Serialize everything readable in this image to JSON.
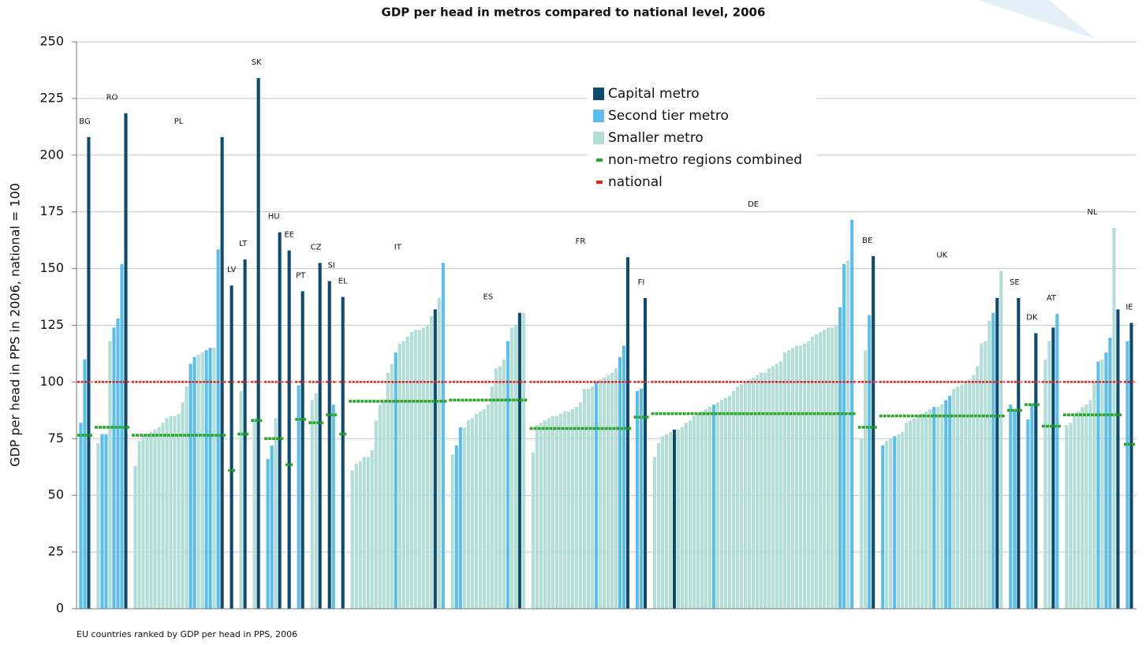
{
  "chart_data": {
    "type": "bar",
    "title": "GDP per head in metros compared to national level, 2006",
    "y_label": "GDP per head in PPS in 2006, national = 100",
    "x_label": "EU countries ranked by GDP per head in PPS, 2006",
    "ylim": [
      0,
      250
    ],
    "yticks": [
      0,
      25,
      50,
      75,
      100,
      125,
      150,
      175,
      200,
      225,
      250
    ],
    "grid": true,
    "series": [
      {
        "name": "Capital metro",
        "color": "#0e4a6e"
      },
      {
        "name": "Second tier metro",
        "color": "#5bbde8"
      },
      {
        "name": "Smaller metro",
        "color": "#b3ddd7"
      },
      {
        "name": "non-metro regions combined",
        "color": "#2aa52a"
      },
      {
        "name": "national",
        "color": "#d8231e"
      }
    ],
    "countries": [
      {
        "label": "BG",
        "values": [
          82,
          110,
          208
        ],
        "series": [
          1,
          1,
          0
        ],
        "non_metro": 76.5,
        "national": 100
      },
      {
        "label": "RO",
        "values": [
          73,
          77,
          77,
          118,
          124,
          128,
          152,
          218.5
        ],
        "series": [
          2,
          1,
          1,
          2,
          1,
          1,
          1,
          0
        ],
        "non_metro": 80,
        "national": 100
      },
      {
        "label": "PL",
        "values": [
          63,
          74,
          76,
          77,
          78,
          79,
          80,
          82,
          84,
          85,
          85,
          86,
          91,
          98,
          108,
          111,
          112,
          113,
          114,
          115,
          115,
          158.5,
          208
        ],
        "series": [
          2,
          2,
          2,
          2,
          2,
          2,
          2,
          2,
          2,
          2,
          2,
          2,
          2,
          2,
          1,
          1,
          2,
          2,
          1,
          1,
          2,
          1,
          0
        ],
        "non_metro": 76.5,
        "national": 100
      },
      {
        "label": "LV",
        "values": [
          142.5
        ],
        "series": [
          0
        ],
        "non_metro": 61,
        "national": 100
      },
      {
        "label": "LT",
        "values": [
          96,
          154
        ],
        "series": [
          2,
          0
        ],
        "non_metro": 77,
        "national": 100
      },
      {
        "label": "SK",
        "values": [
          84,
          234
        ],
        "series": [
          2,
          0
        ],
        "non_metro": 83,
        "national": 100
      },
      {
        "label": "HU",
        "values": [
          66,
          72,
          84,
          166
        ],
        "series": [
          1,
          1,
          2,
          0
        ],
        "non_metro": 75,
        "national": 100
      },
      {
        "label": "EE",
        "values": [
          158
        ],
        "series": [
          0
        ],
        "non_metro": 63.5,
        "national": 100
      },
      {
        "label": "PT",
        "values": [
          98.5,
          140
        ],
        "series": [
          1,
          0
        ],
        "non_metro": 83.5,
        "national": 100
      },
      {
        "label": "CZ",
        "values": [
          92,
          95,
          152.5
        ],
        "series": [
          2,
          2,
          0
        ],
        "non_metro": 82,
        "national": 100
      },
      {
        "label": "SI",
        "values": [
          144.5,
          90
        ],
        "series": [
          0,
          1
        ],
        "non_metro": 85.5,
        "national": 100
      },
      {
        "label": "EL",
        "values": [
          137.5
        ],
        "series": [
          0
        ],
        "non_metro": 77,
        "national": 100
      },
      {
        "label": "IT",
        "values": [
          61,
          64,
          65,
          67,
          67,
          70,
          83,
          90,
          91,
          104,
          108,
          113,
          117,
          118,
          120,
          122,
          123,
          123,
          124,
          125,
          129,
          132,
          137,
          152.5
        ],
        "series": [
          2,
          2,
          2,
          2,
          2,
          2,
          2,
          2,
          2,
          2,
          2,
          1,
          2,
          2,
          2,
          2,
          2,
          2,
          2,
          2,
          2,
          0,
          2,
          1
        ],
        "non_metro": 91.5,
        "national": 100
      },
      {
        "label": "ES",
        "values": [
          68,
          72,
          80,
          80,
          83,
          84,
          86,
          87,
          88,
          90,
          98,
          106,
          107,
          110,
          118,
          124,
          125,
          130.5,
          130.5
        ],
        "series": [
          2,
          1,
          1,
          2,
          2,
          2,
          2,
          2,
          2,
          2,
          2,
          2,
          2,
          2,
          1,
          2,
          2,
          0,
          2
        ],
        "non_metro": 92,
        "national": 100
      },
      {
        "label": "FR",
        "values": [
          69,
          81,
          82,
          83,
          84,
          85,
          85,
          86,
          87,
          87,
          88,
          89,
          91,
          97,
          97,
          98,
          100,
          101,
          102,
          103,
          104,
          106,
          111,
          116,
          155
        ],
        "series": [
          2,
          2,
          2,
          2,
          2,
          2,
          2,
          2,
          2,
          2,
          2,
          2,
          2,
          2,
          2,
          2,
          1,
          2,
          2,
          2,
          2,
          2,
          1,
          1,
          0
        ],
        "non_metro": 79.5,
        "national": 100
      },
      {
        "label": "FI",
        "values": [
          96,
          97,
          137
        ],
        "series": [
          1,
          1,
          0
        ],
        "non_metro": 84.5,
        "national": 100
      },
      {
        "label": "DE",
        "values": [
          67,
          73,
          76,
          77,
          78,
          79,
          79,
          80,
          82,
          83,
          85,
          86,
          87,
          88,
          89,
          90,
          91,
          92,
          93,
          94,
          96,
          98,
          99,
          100,
          101,
          102,
          103,
          104,
          104,
          106,
          107,
          108,
          109,
          113,
          114,
          115,
          116,
          116,
          117,
          118,
          120,
          121,
          122,
          123,
          124,
          124,
          125,
          133,
          152,
          153.5,
          171.5
        ],
        "series": [
          2,
          2,
          2,
          2,
          2,
          0,
          2,
          2,
          2,
          2,
          2,
          2,
          2,
          2,
          2,
          1,
          2,
          2,
          2,
          2,
          2,
          2,
          2,
          2,
          2,
          2,
          2,
          2,
          2,
          2,
          2,
          2,
          2,
          2,
          2,
          2,
          2,
          2,
          2,
          2,
          2,
          2,
          2,
          2,
          2,
          2,
          2,
          1,
          1,
          2,
          1
        ],
        "non_metro": 86,
        "national": 100
      },
      {
        "label": "BE",
        "values": [
          75,
          114,
          129.5,
          155.5
        ],
        "series": [
          2,
          2,
          1,
          0
        ],
        "non_metro": 80,
        "national": 100
      },
      {
        "label": "UK",
        "values": [
          72,
          74,
          75,
          76,
          77,
          78,
          82,
          83,
          84,
          85,
          86,
          87,
          88,
          89,
          89,
          90,
          92,
          94,
          97,
          98,
          99,
          100,
          101,
          103,
          107,
          117,
          118,
          127,
          130.5,
          137,
          149
        ],
        "series": [
          1,
          2,
          2,
          1,
          2,
          2,
          2,
          2,
          2,
          2,
          2,
          2,
          2,
          1,
          2,
          2,
          1,
          1,
          2,
          2,
          2,
          2,
          2,
          2,
          2,
          2,
          2,
          2,
          1,
          0,
          2
        ],
        "non_metro": 85,
        "national": 100
      },
      {
        "label": "SE",
        "values": [
          90,
          88,
          137
        ],
        "series": [
          1,
          1,
          0
        ],
        "non_metro": 87.5,
        "national": 100
      },
      {
        "label": "DK",
        "values": [
          83.5,
          90,
          121.5
        ],
        "series": [
          1,
          1,
          0
        ],
        "non_metro": 90,
        "national": 100
      },
      {
        "label": "AT",
        "values": [
          110,
          118,
          124,
          130
        ],
        "series": [
          2,
          2,
          0,
          1
        ],
        "non_metro": 80.5,
        "national": 100
      },
      {
        "label": "NL",
        "values": [
          81,
          82,
          85,
          87,
          89,
          90,
          92,
          100,
          109,
          110,
          113,
          119.5,
          168,
          132
        ],
        "series": [
          2,
          2,
          2,
          2,
          2,
          2,
          2,
          2,
          1,
          2,
          1,
          1,
          2,
          0
        ],
        "non_metro": 85.5,
        "national": 100
      },
      {
        "label": "IE",
        "values": [
          118,
          126
        ],
        "series": [
          1,
          0
        ],
        "non_metro": 72.5,
        "national": 100
      }
    ]
  }
}
